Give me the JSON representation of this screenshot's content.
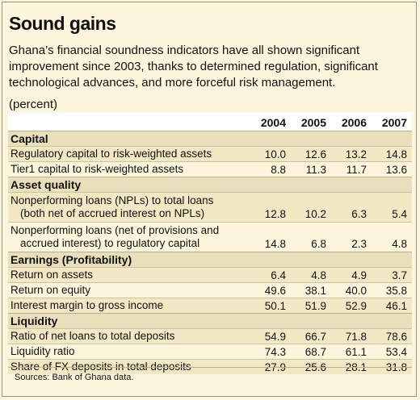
{
  "title": "Sound gains",
  "subtitle": "Ghana’s financial soundness indicators have all shown significant improvement since 2003, thanks to determined regulation, significant technological advances, and more forceful risk management.",
  "unit": "(percent)",
  "source": "Sources: Bank of Ghana data.",
  "chart_data": {
    "type": "table",
    "columns": [
      "2004",
      "2005",
      "2006",
      "2007"
    ],
    "sections": [
      {
        "name": "Capital",
        "rows": [
          {
            "label": [
              "Regulatory capital to risk-weighted assets"
            ],
            "values": [
              "10.0",
              "12.6",
              "13.2",
              "14.8"
            ]
          },
          {
            "label": [
              "Tier1 capital to risk-weighted assets"
            ],
            "values": [
              "8.8",
              "11.3",
              "11.7",
              "13.6"
            ]
          }
        ]
      },
      {
        "name": "Asset quality",
        "rows": [
          {
            "label": [
              "Nonperforming loans (NPLs) to total loans",
              "(both net of accrued interest on NPLs)"
            ],
            "values": [
              "12.8",
              "10.2",
              "6.3",
              "5.4"
            ]
          },
          {
            "label": [
              "Nonperforming loans (net of provisions and",
              "accrued interest) to regulatory capital"
            ],
            "values": [
              "14.8",
              "6.8",
              "2.3",
              "4.8"
            ]
          }
        ]
      },
      {
        "name": "Earnings (Profitability)",
        "rows": [
          {
            "label": [
              "Return on assets"
            ],
            "values": [
              "6.4",
              "4.8",
              "4.9",
              "3.7"
            ]
          },
          {
            "label": [
              "Return on equity"
            ],
            "values": [
              "49.6",
              "38.1",
              "40.0",
              "35.8"
            ]
          },
          {
            "label": [
              "Interest margin to gross income"
            ],
            "values": [
              "50.1",
              "51.9",
              "52.9",
              "46.1"
            ]
          }
        ]
      },
      {
        "name": "Liquidity",
        "rows": [
          {
            "label": [
              "Ratio of net loans to total deposits"
            ],
            "values": [
              "54.9",
              "66.7",
              "71.8",
              "78.6"
            ]
          },
          {
            "label": [
              "Liquidity ratio"
            ],
            "values": [
              "74.3",
              "68.7",
              "61.1",
              "53.4"
            ]
          },
          {
            "label": [
              "Share of FX deposits in total deposits"
            ],
            "values": [
              "27.9",
              "25.6",
              "28.1",
              "31.8"
            ]
          }
        ]
      }
    ]
  }
}
